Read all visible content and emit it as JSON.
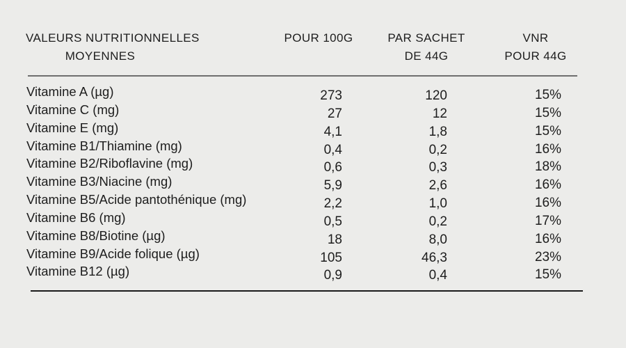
{
  "table": {
    "header": {
      "col1_line1": "VALEURS NUTRITIONNELLES",
      "col1_line2": "MOYENNES",
      "col2": "POUR 100G",
      "col3_line1": "PAR SACHET",
      "col3_line2": "DE 44G",
      "col4_line1": "VNR",
      "col4_line2": "POUR 44G"
    },
    "rows": [
      {
        "label": "Vitamine A (µg)",
        "per_100g": "273",
        "per_sachet_44g": "120",
        "vnr_44g": "15%"
      },
      {
        "label": "Vitamine C (mg)",
        "per_100g": "27",
        "per_sachet_44g": "12",
        "vnr_44g": "15%"
      },
      {
        "label": "Vitamine E (mg)",
        "per_100g": "4,1",
        "per_sachet_44g": "1,8",
        "vnr_44g": "15%"
      },
      {
        "label": "Vitamine B1/Thiamine (mg)",
        "per_100g": "0,4",
        "per_sachet_44g": "0,2",
        "vnr_44g": "16%"
      },
      {
        "label": "Vitamine B2/Riboflavine (mg)",
        "per_100g": "0,6",
        "per_sachet_44g": "0,3",
        "vnr_44g": "18%"
      },
      {
        "label": "Vitamine B3/Niacine (mg)",
        "per_100g": "5,9",
        "per_sachet_44g": "2,6",
        "vnr_44g": "16%"
      },
      {
        "label": "Vitamine B5/Acide pantothénique (mg)",
        "per_100g": "2,2",
        "per_sachet_44g": "1,0",
        "vnr_44g": "16%"
      },
      {
        "label": "Vitamine B6 (mg)",
        "per_100g": "0,5",
        "per_sachet_44g": "0,2",
        "vnr_44g": "17%"
      },
      {
        "label": "Vitamine B8/Biotine (µg)",
        "per_100g": "18",
        "per_sachet_44g": "8,0",
        "vnr_44g": "16%"
      },
      {
        "label": "Vitamine B9/Acide folique (µg)",
        "per_100g": "105",
        "per_sachet_44g": "46,3",
        "vnr_44g": "23%"
      },
      {
        "label": "Vitamine B12 (µg)",
        "per_100g": "0,9",
        "per_sachet_44g": "0,4",
        "vnr_44g": "15%"
      }
    ]
  },
  "colors": {
    "background": "#ECECEA",
    "text": "#1D1D1D",
    "rule_top": "#6E6E6E",
    "rule_bottom": "#1A1A1A"
  }
}
